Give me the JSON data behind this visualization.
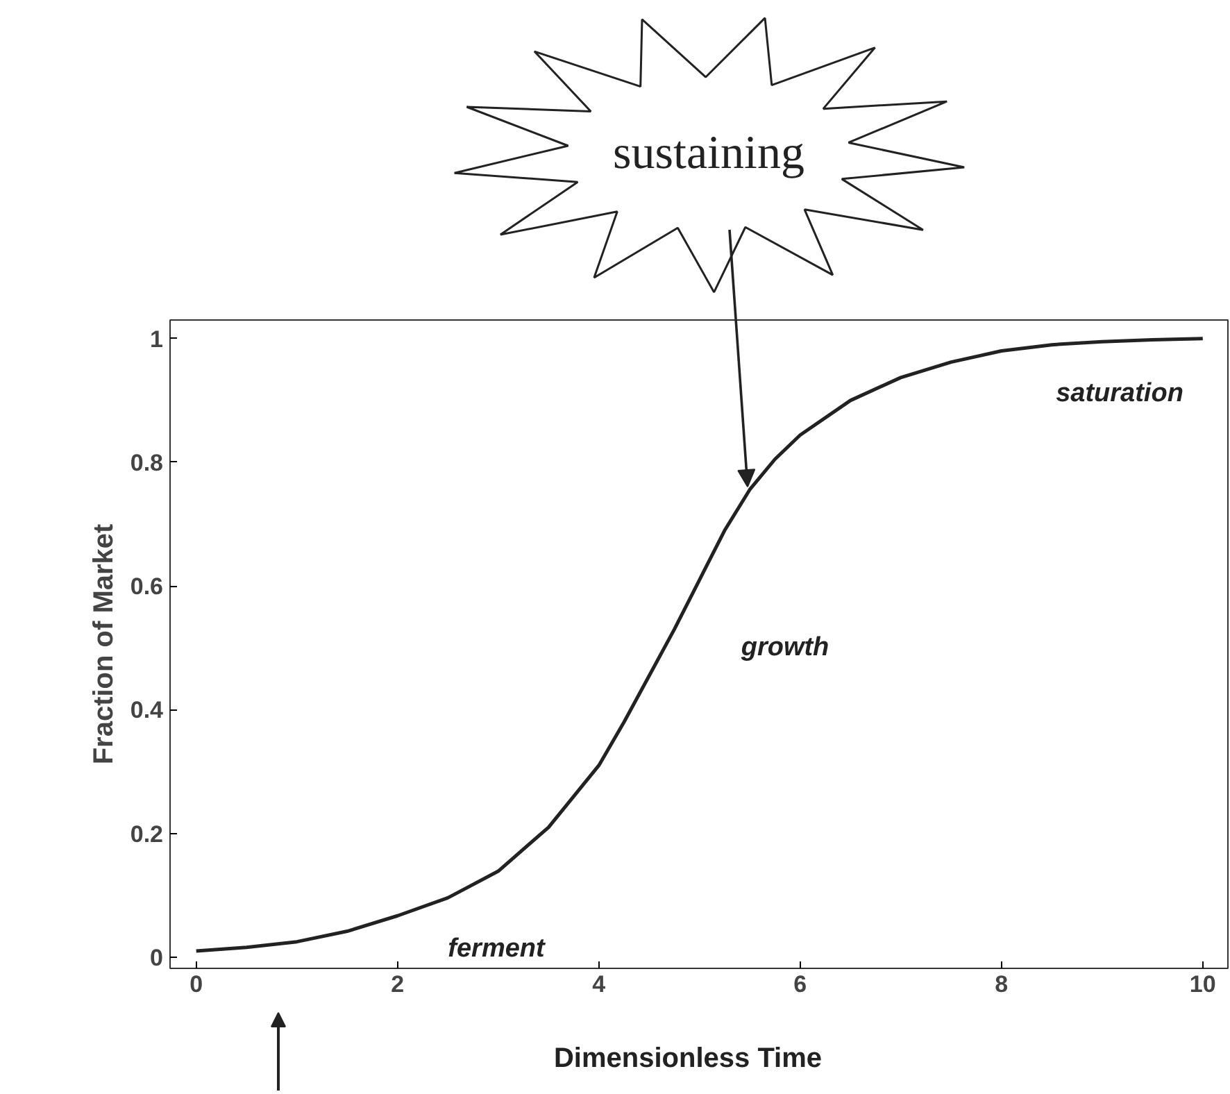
{
  "chart_data": {
    "type": "line",
    "xlabel": "Dimensionless Time",
    "ylabel": "Fraction of Market",
    "x": [
      0,
      0.5,
      1,
      1.5,
      2,
      2.5,
      3,
      3.5,
      4,
      4.25,
      4.5,
      4.75,
      5,
      5.25,
      5.5,
      5.75,
      6,
      6.5,
      7,
      7.5,
      8,
      8.5,
      9,
      9.5,
      10
    ],
    "series": [
      {
        "color": "#222222",
        "values": [
          0.01,
          0.016,
          0.025,
          0.042,
          0.067,
          0.096,
          0.139,
          0.21,
          0.31,
          0.38,
          0.455,
          0.53,
          0.61,
          0.69,
          0.756,
          0.805,
          0.844,
          0.9,
          0.937,
          0.962,
          0.98,
          0.99,
          0.995,
          0.998,
          1.0
        ]
      }
    ],
    "xlim": [
      -0.26,
      10.25
    ],
    "ylim": [
      -0.018,
      1.03
    ],
    "xticks": [
      0,
      2,
      4,
      6,
      8,
      10
    ],
    "yticks": [
      0,
      0.2,
      0.4,
      0.6,
      0.8,
      1
    ],
    "grid": false,
    "marker": "none",
    "line_style": "solid",
    "annotations": [
      "sustaining",
      "ferment",
      "growth",
      "saturation"
    ]
  }
}
